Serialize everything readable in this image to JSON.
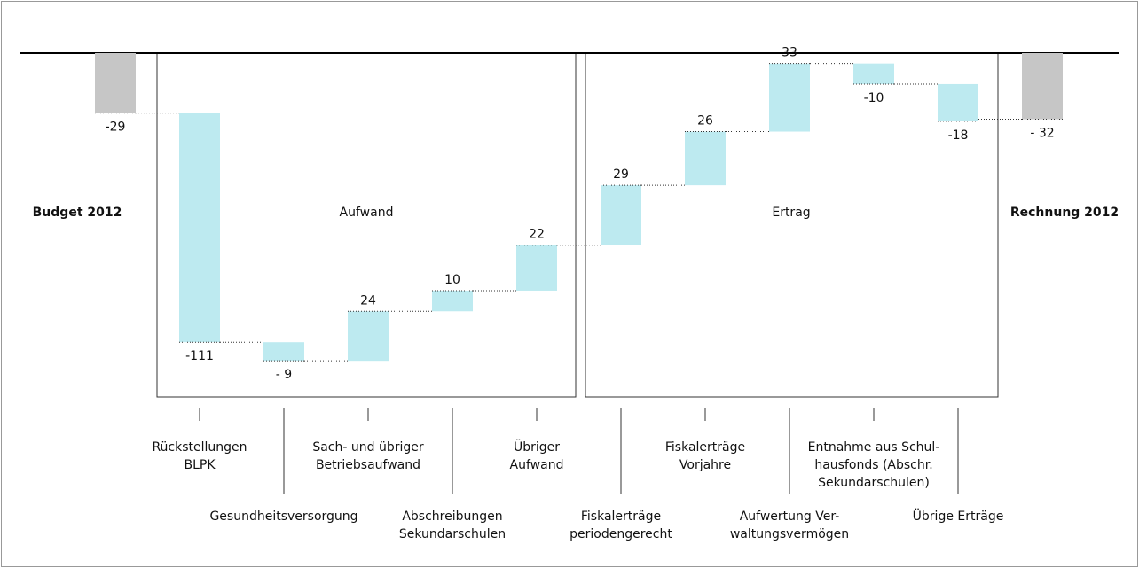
{
  "chart_data": {
    "type": "waterfall",
    "categories": [
      [
        "Budget 2012"
      ],
      [
        "Rückstellungen",
        "BLPK"
      ],
      [
        "Gesundheitsversorgung"
      ],
      [
        "Sach- und übriger",
        "Betriebsaufwand"
      ],
      [
        "Abschreibungen",
        "Sekundarschulen"
      ],
      [
        "Übriger",
        "Aufwand"
      ],
      [
        "Fiskalerträge",
        "periodengerecht"
      ],
      [
        "Fiskalerträge",
        "Vorjahre"
      ],
      [
        "Aufwertung Ver-",
        "waltungsvermögen"
      ],
      [
        "Entnahme aus Schul-",
        "hausfonds (Abschr.",
        "Sekundarschulen)"
      ],
      [
        "Übrige Erträge"
      ],
      [
        "Rechnung 2012"
      ]
    ],
    "values": [
      -29,
      -111,
      -9,
      24,
      10,
      22,
      29,
      26,
      33,
      -10,
      -18,
      -32
    ],
    "value_labels": [
      "-29",
      "-111",
      "- 9",
      "24",
      "10",
      "22",
      "29",
      "26",
      "33",
      "-10",
      "-18",
      "- 32"
    ],
    "groups": [
      "Aufwand",
      "Ertrag"
    ],
    "color": "#bdeaf0",
    "total_color": "#c6c6c6"
  }
}
